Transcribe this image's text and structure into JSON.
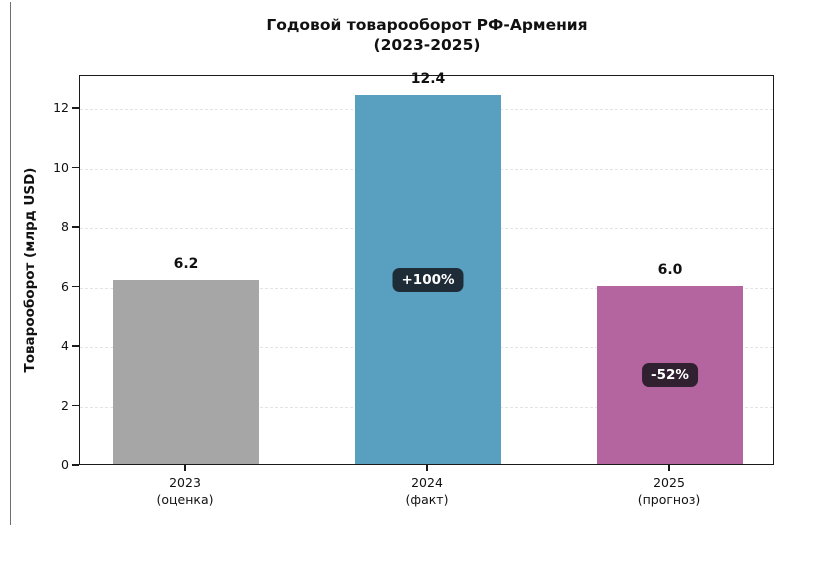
{
  "figure": {
    "background": "#ffffff"
  },
  "chart_data": {
    "type": "bar",
    "title": "Годовой товарооборот РФ-Армения",
    "subtitle": "(2023-2025)",
    "ylabel": "Товарооборот (млрд USD)",
    "xlabel": "",
    "categories": [
      {
        "year": "2023",
        "note": "(оценка)"
      },
      {
        "year": "2024",
        "note": "(факт)"
      },
      {
        "year": "2025",
        "note": "(прогноз)"
      }
    ],
    "values": [
      6.2,
      12.4,
      6.0
    ],
    "value_labels": [
      "6.2",
      "12.4",
      "6.0"
    ],
    "bar_colors": [
      "#a6a6a6",
      "#59a0c0",
      "#b4649e"
    ],
    "annotations": [
      null,
      "+100%",
      "-52%"
    ],
    "annotation_style": {
      "background": "rgba(15,15,20,0.8)",
      "text_color": "#ffffff"
    },
    "yticks": [
      0,
      2,
      4,
      6,
      8,
      10,
      12
    ],
    "ylim": [
      0,
      13.1
    ],
    "grid": {
      "axis": "y",
      "style": "dashed",
      "color": "#e4e4e4"
    },
    "spine_color": "#1a1a1a",
    "legend": null
  }
}
